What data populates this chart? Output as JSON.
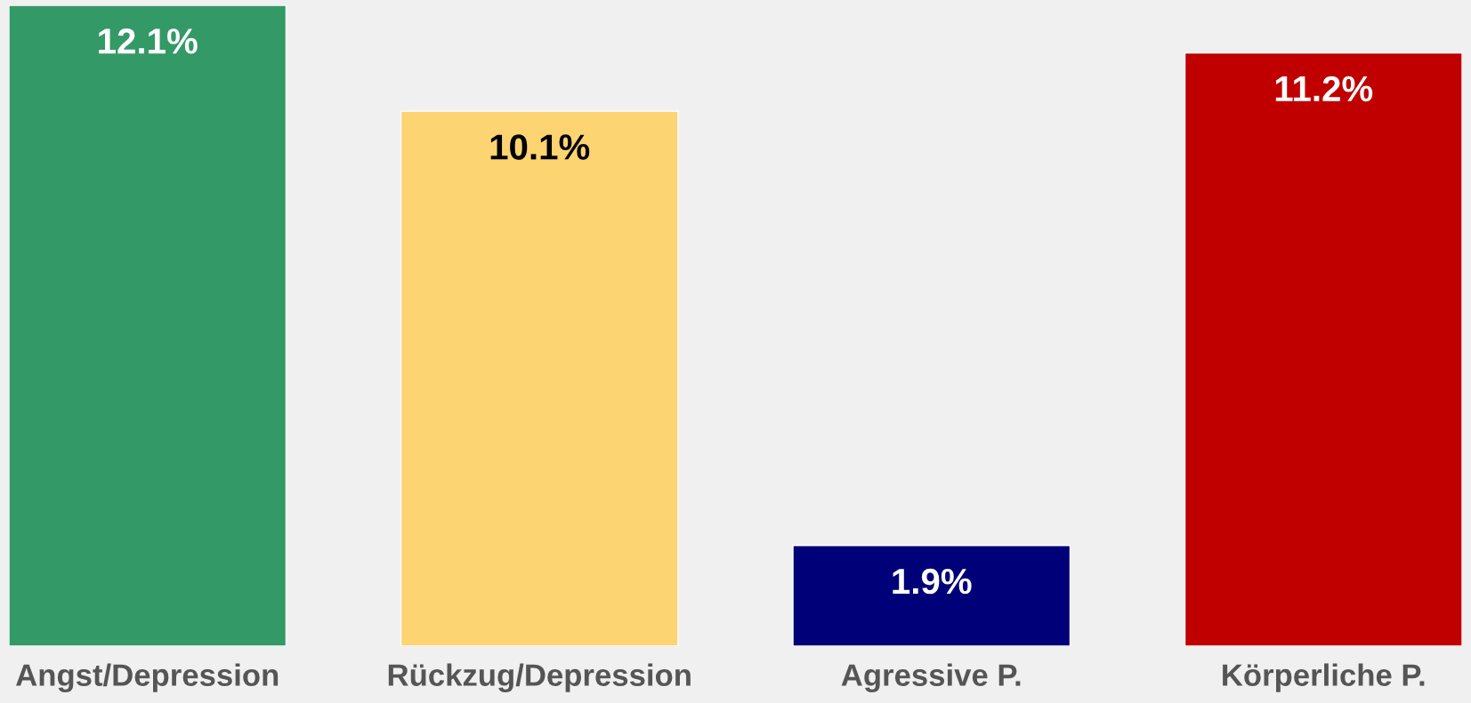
{
  "chart_data": {
    "type": "bar",
    "categories": [
      "Angst/Depression",
      "Rückzug/Depression",
      "Agressive P.",
      "Körperliche P."
    ],
    "values": [
      12.1,
      10.1,
      1.9,
      11.2
    ],
    "colors": [
      "#339966",
      "#fdd472",
      "#000078",
      "#c00000"
    ],
    "value_labels": [
      "12.1%",
      "10.1%",
      "1.9%",
      "11.2%"
    ],
    "grid": false,
    "legend": false
  }
}
